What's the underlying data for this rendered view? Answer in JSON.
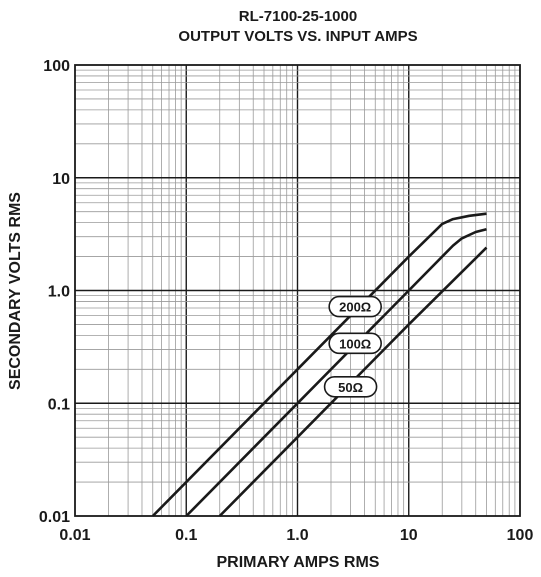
{
  "chart_data": {
    "type": "line",
    "title": "RL-7100-25-1000",
    "subtitle": "OUTPUT VOLTS VS. INPUT AMPS",
    "xlabel": "PRIMARY AMPS RMS",
    "ylabel": "SECONDARY VOLTS RMS",
    "x_scale": "log",
    "y_scale": "log",
    "xlim": [
      0.01,
      100
    ],
    "ylim": [
      0.01,
      100
    ],
    "grid": true,
    "x_ticks": [
      {
        "value": 0.01,
        "label": "0.01"
      },
      {
        "value": 0.1,
        "label": "0.1"
      },
      {
        "value": 1,
        "label": "1.0"
      },
      {
        "value": 10,
        "label": "10"
      },
      {
        "value": 100,
        "label": "100"
      }
    ],
    "y_ticks": [
      {
        "value": 0.01,
        "label": "0.01"
      },
      {
        "value": 0.1,
        "label": "0.1"
      },
      {
        "value": 1,
        "label": "1.0"
      },
      {
        "value": 10,
        "label": "10"
      },
      {
        "value": 100,
        "label": "100"
      }
    ],
    "series": [
      {
        "name": "200Ω",
        "points": [
          [
            0.05,
            0.01
          ],
          [
            1,
            0.2
          ],
          [
            10,
            2
          ],
          [
            20,
            3.9
          ],
          [
            25,
            4.3
          ],
          [
            35,
            4.6
          ],
          [
            50,
            4.8
          ]
        ],
        "label_at": [
          3.3,
          0.72
        ]
      },
      {
        "name": "100Ω",
        "points": [
          [
            0.1,
            0.01
          ],
          [
            1,
            0.1
          ],
          [
            10,
            1
          ],
          [
            25,
            2.5
          ],
          [
            30,
            2.9
          ],
          [
            40,
            3.3
          ],
          [
            50,
            3.5
          ]
        ],
        "label_at": [
          3.3,
          0.34
        ]
      },
      {
        "name": "50Ω",
        "points": [
          [
            0.2,
            0.01
          ],
          [
            1,
            0.05
          ],
          [
            10,
            0.5
          ],
          [
            50,
            2.4
          ]
        ],
        "label_at": [
          3.0,
          0.14
        ]
      }
    ],
    "colors": {
      "line": "#1a1a1a",
      "grid": "#9a9a9a",
      "frame": "#1a1a1a"
    }
  }
}
